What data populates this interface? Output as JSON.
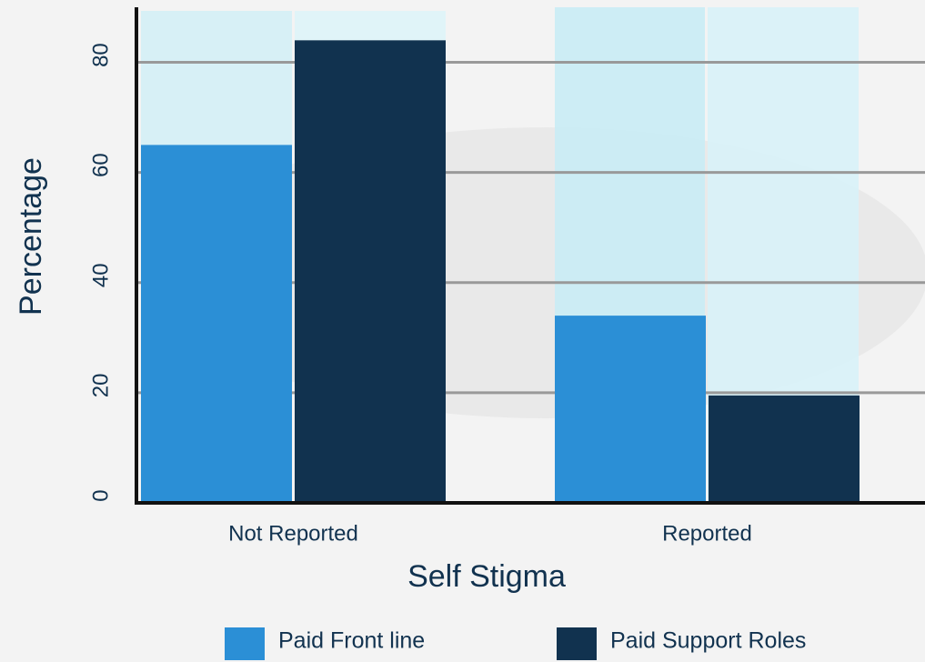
{
  "chart_data": {
    "type": "bar",
    "xlabel": "Self Stigma",
    "ylabel": "Percentage",
    "categories": [
      "Not Reported",
      "Reported"
    ],
    "series": [
      {
        "name": "Paid Front line",
        "color": "#2b8fd6",
        "values": [
          65,
          34
        ]
      },
      {
        "name": "Paid Support Roles",
        "color": "#11324f",
        "values": [
          84,
          19.5
        ]
      }
    ],
    "ylim": [
      0,
      90
    ],
    "yticks": [
      0,
      20,
      40,
      60,
      80
    ],
    "grid": true,
    "legend": "bottom"
  }
}
